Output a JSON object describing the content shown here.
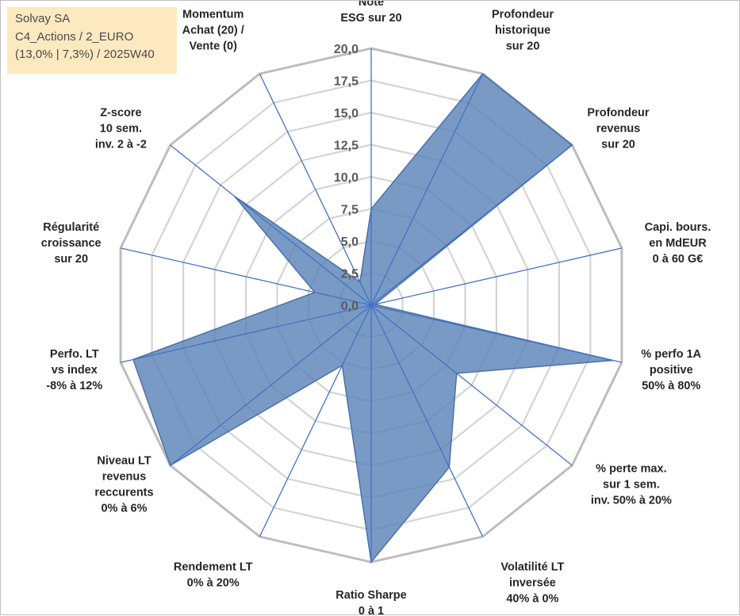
{
  "info_box": {
    "line1": "Solvay SA",
    "line2": "C4_Actions / 2_EURO",
    "line3": "(13,0% | 7,3%) / 2025W40"
  },
  "chart_data": {
    "type": "radar",
    "title": "Solvay SA",
    "r_range": [
      0,
      20
    ],
    "r_ticks": [
      "0,0",
      "2,5",
      "5,0",
      "7,5",
      "10,0",
      "12,5",
      "15,0",
      "17,5",
      "20,0"
    ],
    "grid": true,
    "series_color": "#5b84b8",
    "axes": [
      {
        "label": [
          "Note",
          "ESG sur 20"
        ],
        "value": 7.5
      },
      {
        "label": [
          "Profondeur",
          "historique",
          "sur 20"
        ],
        "value": 20
      },
      {
        "label": [
          "Profondeur",
          "revenus",
          "sur 20"
        ],
        "value": 20
      },
      {
        "label": [
          "Capi. bours.",
          "en MdEUR",
          "0 à 60 G€"
        ],
        "value": 0.3
      },
      {
        "label": [
          "% perfo 1A",
          "positive",
          "50% à 80%"
        ],
        "value": 19.3
      },
      {
        "label": [
          "% perte max.",
          "sur 1 sem.",
          "inv. 50% à 20%"
        ],
        "value": 8.5
      },
      {
        "label": [
          "Volatilité LT",
          "inversée",
          "40% à 0%"
        ],
        "value": 14
      },
      {
        "label": [
          "Ratio Sharpe",
          "0 à 1"
        ],
        "value": 20
      },
      {
        "label": [
          "Rendement LT",
          "0% à 20%"
        ],
        "value": 5.2
      },
      {
        "label": [
          "Niveau LT",
          "revenus",
          "reccurents",
          "0% à 6%"
        ],
        "value": 20
      },
      {
        "label": [
          "Perfo. LT",
          "vs index",
          "-8% à 12%"
        ],
        "value": 19
      },
      {
        "label": [
          "Régularité",
          "croissance",
          "sur 20"
        ],
        "value": 4.5
      },
      {
        "label": [
          "Z-score",
          "10 sem.",
          "inv. 2 à -2"
        ],
        "value": 13.6
      },
      {
        "label": [
          "Momentum",
          "Achat (20) /",
          "Vente (0)"
        ],
        "value": 2
      }
    ]
  }
}
